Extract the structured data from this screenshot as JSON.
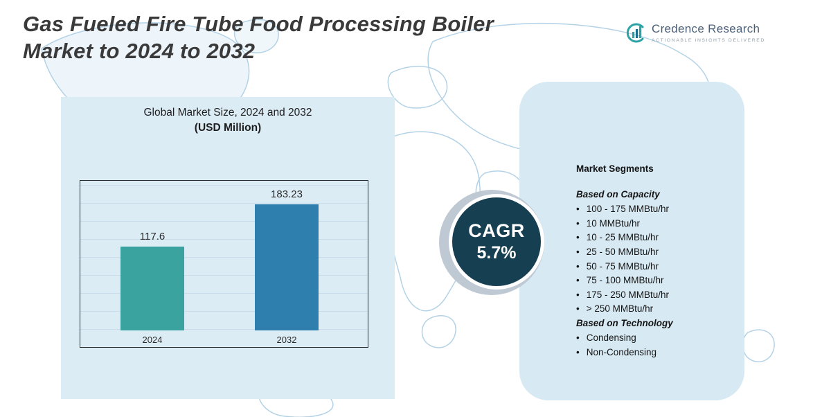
{
  "title": {
    "line1": "Gas Fueled Fire Tube Food Processing Boiler",
    "line2": "Market to 2024 to 2032"
  },
  "logo": {
    "name": "Credence Research",
    "tagline": "Actionable Insights Delivered"
  },
  "chart": {
    "title_line1": "Global Market Size, 2024 and 2032",
    "title_line2": "(USD Million)"
  },
  "chart_data": {
    "type": "bar",
    "title": "Global Market Size, 2024 and 2032 (USD Million)",
    "categories": [
      "2024",
      "2032"
    ],
    "values": [
      117.6,
      183.23
    ],
    "value_labels": [
      "117.6",
      "183.23"
    ],
    "ylim": [
      0,
      200
    ],
    "bar_colors": [
      "#3aa3a0",
      "#2e7fae"
    ],
    "grid": "horizontal",
    "legend": "none"
  },
  "cagr": {
    "label": "CAGR",
    "value": "5.7%"
  },
  "segments": {
    "heading": "Market Segments",
    "capacity_heading": "Based on Capacity",
    "capacity_items": [
      "100 - 175 MMBtu/hr",
      "10 MMBtu/hr",
      "10 - 25 MMBtu/hr",
      "25 - 50 MMBtu/hr",
      "50 - 75 MMBtu/hr",
      "75 - 100 MMBtu/hr",
      "175 - 250 MMBtu/hr",
      "> 250 MMBtu/hr"
    ],
    "technology_heading": "Based on Technology",
    "technology_items": [
      "Condensing",
      "Non-Condensing"
    ]
  },
  "colors": {
    "panel_blue": "#dcecf5",
    "cagr_circle": "#173f52",
    "map_line": "#b3d2e6",
    "title_text": "#3a3a3a"
  }
}
